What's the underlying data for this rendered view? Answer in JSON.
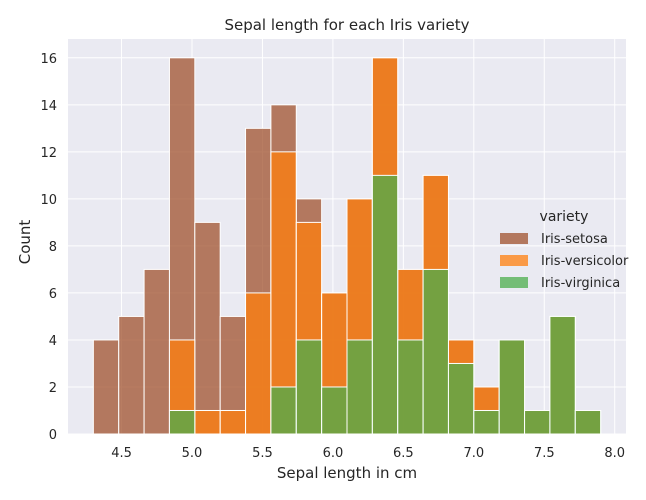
{
  "chart_data": {
    "type": "bar",
    "subtype": "stacked-histogram",
    "title": "Sepal length for each Iris variety",
    "xlabel": "Sepal length in cm",
    "ylabel": "Count",
    "xlim": [
      4.12,
      8.08
    ],
    "ylim": [
      0,
      16.8
    ],
    "grid": true,
    "legend_position": "center-right",
    "legend_title": "variety",
    "bin_start": 4.3,
    "bin_width": 0.18,
    "x_ticks": [
      "4.5",
      "5.0",
      "5.5",
      "6.0",
      "6.5",
      "7.0",
      "7.5",
      "8.0"
    ],
    "x_tick_values": [
      4.5,
      5.0,
      5.5,
      6.0,
      6.5,
      7.0,
      7.5,
      8.0
    ],
    "y_ticks": [
      "0",
      "2",
      "4",
      "6",
      "8",
      "10",
      "12",
      "14",
      "16"
    ],
    "y_tick_values": [
      0,
      2,
      4,
      6,
      8,
      10,
      12,
      14,
      16
    ],
    "series": [
      {
        "name": "Iris-setosa",
        "color": "#a0522d",
        "values": [
          4,
          5,
          7,
          16,
          9,
          5,
          13,
          14,
          10,
          6,
          10,
          16,
          7,
          11,
          4,
          2,
          4,
          1,
          5,
          1
        ]
      },
      {
        "name": "Iris-versicolor",
        "color": "#ff7f0e",
        "values": [
          0,
          0,
          0,
          4,
          1,
          1,
          6,
          12,
          9,
          6,
          10,
          16,
          7,
          11,
          4,
          2,
          4,
          1,
          5,
          1
        ]
      },
      {
        "name": "Iris-virginica",
        "color": "#4cae4c",
        "values": [
          0,
          0,
          0,
          1,
          0,
          0,
          0,
          2,
          4,
          2,
          4,
          11,
          4,
          7,
          3,
          1,
          4,
          1,
          5,
          1
        ]
      }
    ]
  }
}
